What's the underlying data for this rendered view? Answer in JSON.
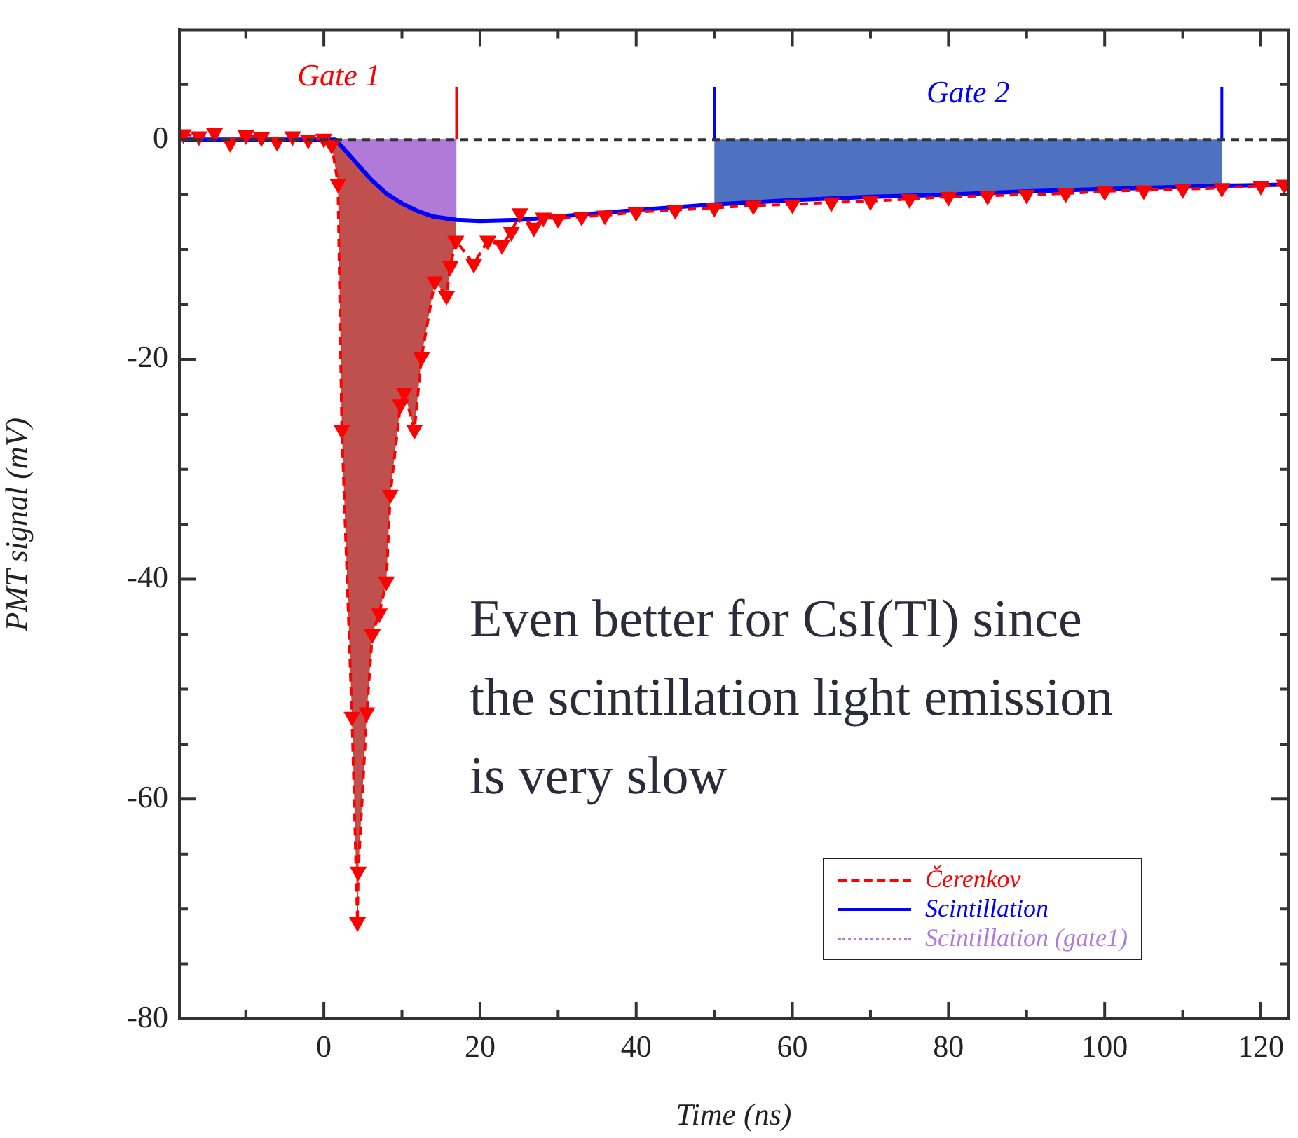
{
  "chart_data": {
    "type": "line",
    "xlabel": "Time (ns)",
    "ylabel": "PMT signal (mV)",
    "xlim": [
      -18.5,
      123.5
    ],
    "ylim": [
      -80,
      10
    ],
    "xticks": [
      {
        "value": -10,
        "label": null
      },
      0,
      {
        "value": 10,
        "label": null
      },
      20,
      {
        "value": 30,
        "label": null
      },
      40,
      {
        "value": 50,
        "label": null
      },
      60,
      {
        "value": 70,
        "label": null
      },
      80,
      {
        "value": 90,
        "label": null
      },
      100,
      {
        "value": 110,
        "label": null
      },
      120
    ],
    "yticks": [
      -80,
      {
        "value": -75,
        "label": null
      },
      {
        "value": -70,
        "label": null
      },
      {
        "value": -65,
        "label": null
      },
      -60,
      {
        "value": -55,
        "label": null
      },
      {
        "value": -50,
        "label": null
      },
      {
        "value": -45,
        "label": null
      },
      -40,
      {
        "value": -35,
        "label": null
      },
      {
        "value": -30,
        "label": null
      },
      {
        "value": -25,
        "label": null
      },
      -20,
      {
        "value": -15,
        "label": null
      },
      {
        "value": -10,
        "label": null
      },
      {
        "value": -5,
        "label": null
      },
      0,
      {
        "value": 5,
        "label": null
      }
    ],
    "grid": false,
    "legend": "bottom right",
    "series": [
      {
        "name": "Čerenkov",
        "type": "line",
        "color": "#ff0000",
        "line_style": "dashed",
        "marker": "triangle",
        "x": [
          -18,
          -16,
          -14,
          -12,
          -10,
          -8,
          -6,
          -4,
          -2,
          0,
          1,
          1.8,
          2.3,
          3.6,
          4.3,
          4.4,
          5.5,
          6.2,
          7.1,
          8,
          8.5,
          9.8,
          10.3,
          11.6,
          12.5,
          14.2,
          15.7,
          16.2,
          16.9,
          19.2,
          21,
          22.8,
          24,
          25.1,
          26.9,
          28.1,
          30,
          33,
          36,
          40,
          45,
          50,
          55,
          60,
          65,
          70,
          75,
          80,
          85,
          90,
          95,
          100,
          105,
          110,
          115,
          120,
          123
        ],
        "values": [
          0.5,
          0.3,
          0.6,
          -0.3,
          0.4,
          0.2,
          -0.2,
          0.3,
          0,
          0.1,
          -0.5,
          -4,
          -26.4,
          -52.5,
          -71.2,
          -66.6,
          -52.1,
          -45,
          -43.1,
          -40.2,
          -32.3,
          -24.1,
          -23,
          -26.4,
          -19.8,
          -12.9,
          -14.2,
          -11.5,
          -9.2,
          -11.3,
          -9.2,
          -9.6,
          -8.4,
          -6.7,
          -8,
          -7.1,
          -7.2,
          -7,
          -6.9,
          -6.6,
          -6.4,
          -6.2,
          -6,
          -5.9,
          -5.7,
          -5.6,
          -5.4,
          -5.2,
          -5.1,
          -5,
          -4.9,
          -4.7,
          -4.6,
          -4.5,
          -4.4,
          -4.2,
          -4.1
        ]
      },
      {
        "name": "Scintillation",
        "type": "line",
        "color": "#0000ff",
        "line_style": "solid",
        "marker": "none",
        "x": [
          -18,
          -10,
          0,
          1.5,
          2.5,
          4,
          6,
          8,
          10,
          12,
          14,
          17,
          20,
          25,
          30,
          40,
          50,
          60,
          70,
          80,
          90,
          100,
          115,
          123
        ],
        "values": [
          0,
          0,
          0,
          0,
          -0.8,
          -2,
          -3.6,
          -4.9,
          -5.8,
          -6.5,
          -7,
          -7.3,
          -7.4,
          -7.3,
          -7,
          -6.4,
          -5.9,
          -5.5,
          -5.2,
          -5,
          -4.7,
          -4.5,
          -4.2,
          -4.1
        ]
      },
      {
        "type": "area",
        "color": "#c0504d",
        "x": [
          1,
          1.8,
          2.3,
          3.6,
          4.3,
          4.4,
          5.5,
          6.2,
          7.1,
          8,
          8.5,
          9.8,
          10.3,
          11.6,
          12.5,
          14.2,
          15.7,
          16.2,
          16.9
        ],
        "values": [
          -0.5,
          -4,
          -26.4,
          -52.5,
          -71.2,
          -66.6,
          -52.1,
          -45,
          -43.1,
          -40.2,
          -32.3,
          -24.1,
          -23,
          -26.4,
          -19.8,
          -12.9,
          -14.2,
          -11.5,
          -9.2
        ]
      },
      {
        "name": "Scintillation (gate1)",
        "type": "area",
        "color": "#b07ad8",
        "x": [
          1.5,
          2.5,
          4,
          6,
          8,
          10,
          12,
          14,
          17
        ],
        "values": [
          0,
          -0.8,
          -2,
          -3.6,
          -4.9,
          -5.8,
          -6.5,
          -7,
          -7.3
        ]
      },
      {
        "type": "area",
        "color": "#4f72c0",
        "x": [
          50,
          60,
          70,
          80,
          90,
          100,
          115
        ],
        "values": [
          -5.9,
          -5.5,
          -5.2,
          -5,
          -4.7,
          -4.5,
          -4.2
        ]
      },
      {
        "type": "line",
        "color": "#ff0000",
        "line_style": "solid",
        "marker": "none",
        "x": [
          17,
          17
        ],
        "values": [
          0,
          4.8
        ]
      },
      {
        "type": "line",
        "color": "#0000ff",
        "line_style": "solid",
        "marker": "none",
        "x": [
          50,
          50
        ],
        "values": [
          0,
          4.8
        ]
      },
      {
        "type": "line",
        "color": "#0000ff",
        "line_style": "solid",
        "marker": "none",
        "x": [
          115,
          115
        ],
        "values": [
          0,
          4.8
        ]
      }
    ],
    "ref_lines": [
      {
        "axis": "y",
        "value": 0,
        "color": "#333333",
        "line_style": "dashed"
      }
    ],
    "annotations": [
      "Gate 1",
      "Gate 2",
      "Even better for CsI(Tl) since the scintillation light emission is very slow"
    ]
  }
}
